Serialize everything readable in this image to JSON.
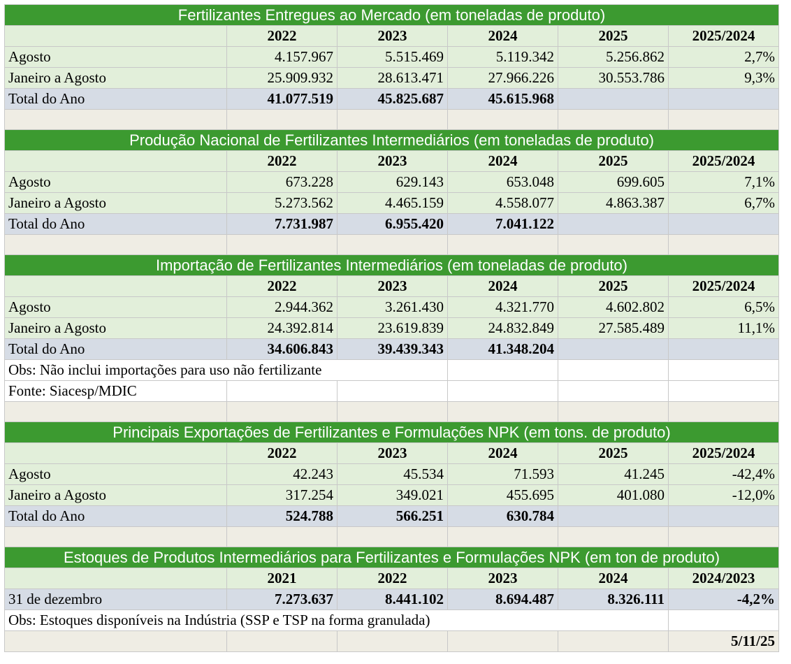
{
  "sections": [
    {
      "title": "Fertilizantes Entregues ao Mercado (em toneladas de produto)",
      "headers": [
        "2022",
        "2023",
        "2024",
        "2025",
        "2025/2024"
      ],
      "rows": [
        {
          "label": "Agosto",
          "values": [
            "4.157.967",
            "5.515.469",
            "5.119.342",
            "5.256.862",
            "2,7%"
          ]
        },
        {
          "label": "Janeiro a Agosto",
          "values": [
            "25.909.932",
            "28.613.471",
            "27.966.226",
            "30.553.786",
            "9,3%"
          ]
        }
      ],
      "total": {
        "label": "Total do Ano",
        "values": [
          "41.077.519",
          "45.825.687",
          "45.615.968"
        ]
      }
    },
    {
      "title": "Produção Nacional de Fertilizantes Intermediários (em toneladas de produto)",
      "headers": [
        "2022",
        "2023",
        "2024",
        "2025",
        "2025/2024"
      ],
      "rows": [
        {
          "label": "Agosto",
          "values": [
            "673.228",
            "629.143",
            "653.048",
            "699.605",
            "7,1%"
          ]
        },
        {
          "label": "Janeiro a Agosto",
          "values": [
            "5.273.562",
            "4.465.159",
            "4.558.077",
            "4.863.387",
            "6,7%"
          ]
        }
      ],
      "total": {
        "label": "Total do Ano",
        "values": [
          "7.731.987",
          "6.955.420",
          "7.041.122"
        ]
      }
    },
    {
      "title": "Importação de Fertilizantes Intermediários (em toneladas de produto)",
      "headers": [
        "2022",
        "2023",
        "2024",
        "2025",
        "2025/2024"
      ],
      "rows": [
        {
          "label": "Agosto",
          "values": [
            "2.944.362",
            "3.261.430",
            "4.321.770",
            "4.602.802",
            "6,5%"
          ]
        },
        {
          "label": "Janeiro a Agosto",
          "values": [
            "24.392.814",
            "23.619.839",
            "24.832.849",
            "27.585.489",
            "11,1%"
          ]
        }
      ],
      "total": {
        "label": "Total do Ano",
        "values": [
          "34.606.843",
          "39.439.343",
          "41.348.204"
        ]
      },
      "notes": [
        "Obs: Não inclui importações para uso não fertilizante",
        "Fonte: Siacesp/MDIC"
      ]
    },
    {
      "title": "Principais Exportações de Fertilizantes e Formulações NPK (em tons. de produto)",
      "headers": [
        "2022",
        "2023",
        "2024",
        "2025",
        "2025/2024"
      ],
      "rows": [
        {
          "label": "Agosto",
          "values": [
            "42.243",
            "45.534",
            "71.593",
            "41.245",
            "-42,4%"
          ]
        },
        {
          "label": "Janeiro a Agosto",
          "values": [
            "317.254",
            "349.021",
            "455.695",
            "401.080",
            "-12,0%"
          ]
        }
      ],
      "total": {
        "label": "Total do Ano",
        "values": [
          "524.788",
          "566.251",
          "630.784"
        ]
      }
    },
    {
      "title": "Estoques de Produtos Intermediários para Fertilizantes e Formulações NPK (em ton de produto)",
      "headers": [
        "2021",
        "2022",
        "2023",
        "2024",
        "2024/2023"
      ],
      "stock": {
        "label": "31 de dezembro",
        "values": [
          "7.273.637",
          "8.441.102",
          "8.694.487",
          "8.326.111",
          "-4,2%"
        ]
      },
      "note": "Obs: Estoques disponíveis na Indústria (SSP e TSP na forma granulada)",
      "date": "5/11/25"
    }
  ]
}
